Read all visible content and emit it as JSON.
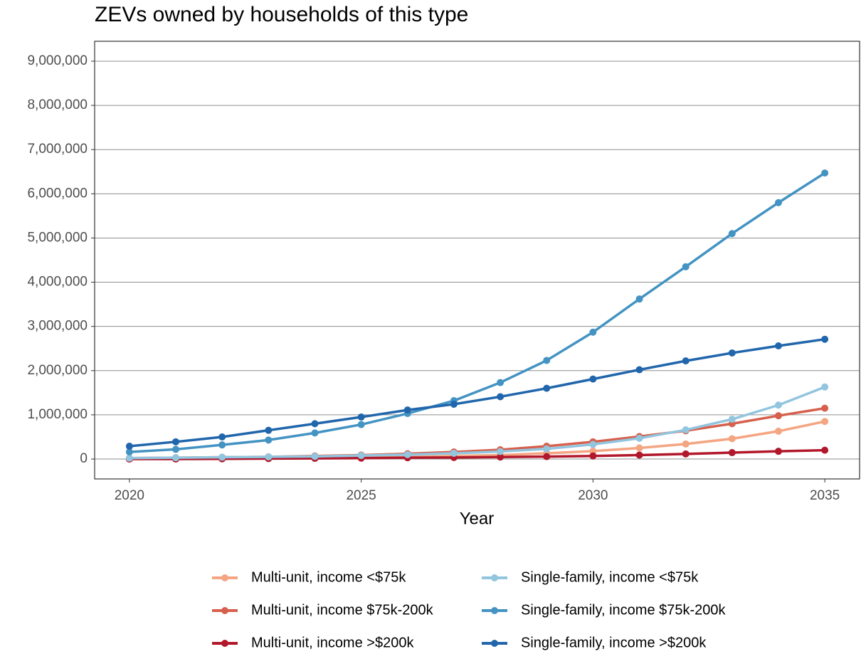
{
  "chart_data": {
    "type": "line",
    "title": "ZEVs owned by households of this type",
    "x_label": "Year",
    "x": [
      2020,
      2021,
      2022,
      2023,
      2024,
      2025,
      2026,
      2027,
      2028,
      2029,
      2030,
      2031,
      2032,
      2033,
      2034,
      2035
    ],
    "series": [
      {
        "name": "Multi-unit, income <$75k",
        "color": "#f4a582",
        "values": [
          0,
          10000,
          10000,
          20000,
          30000,
          40000,
          50000,
          70000,
          90000,
          130000,
          180000,
          250000,
          340000,
          460000,
          630000,
          850000
        ]
      },
      {
        "name": "Multi-unit, income $75k-200k",
        "color": "#d6604d",
        "values": [
          20000,
          30000,
          40000,
          50000,
          70000,
          90000,
          120000,
          160000,
          210000,
          290000,
          390000,
          510000,
          640000,
          800000,
          980000,
          1150000
        ]
      },
      {
        "name": "Multi-unit, income >$200k",
        "color": "#b2182b",
        "values": [
          0,
          0,
          5000,
          10000,
          15000,
          20000,
          30000,
          35000,
          45000,
          55000,
          70000,
          90000,
          115000,
          145000,
          175000,
          200000
        ]
      },
      {
        "name": "Single-family, income <$75k",
        "color": "#92c5de",
        "values": [
          20000,
          30000,
          40000,
          50000,
          60000,
          80000,
          100000,
          130000,
          170000,
          230000,
          330000,
          470000,
          660000,
          900000,
          1220000,
          1630000
        ]
      },
      {
        "name": "Single-family, income $75k-200k",
        "color": "#4393c3",
        "values": [
          160000,
          220000,
          320000,
          430000,
          590000,
          780000,
          1030000,
          1320000,
          1730000,
          2230000,
          2870000,
          3620000,
          4350000,
          5100000,
          5800000,
          6470000
        ]
      },
      {
        "name": "Single-family, income >$200k",
        "color": "#2166ac",
        "values": [
          290000,
          390000,
          500000,
          650000,
          800000,
          950000,
          1110000,
          1240000,
          1410000,
          1600000,
          1810000,
          2020000,
          2220000,
          2400000,
          2560000,
          2710000
        ]
      }
    ],
    "xlim": [
      2019.25,
      2035.75
    ],
    "xticks": [
      2020,
      2025,
      2030,
      2035
    ],
    "ylim": [
      -450000,
      9450000
    ],
    "yticks": [
      0,
      {
        "value": 1000000,
        "label": "1,000,000"
      },
      {
        "value": 2000000,
        "label": "2,000,000"
      },
      {
        "value": 3000000,
        "label": "3,000,000"
      },
      {
        "value": 4000000,
        "label": "4,000,000"
      },
      {
        "value": 5000000,
        "label": "5,000,000"
      },
      {
        "value": 6000000,
        "label": "6,000,000"
      },
      {
        "value": 7000000,
        "label": "7,000,000"
      },
      {
        "value": 8000000,
        "label": "8,000,000"
      },
      {
        "value": 9000000,
        "label": "9,000,000"
      }
    ],
    "grid": true,
    "legend": "bottom"
  }
}
